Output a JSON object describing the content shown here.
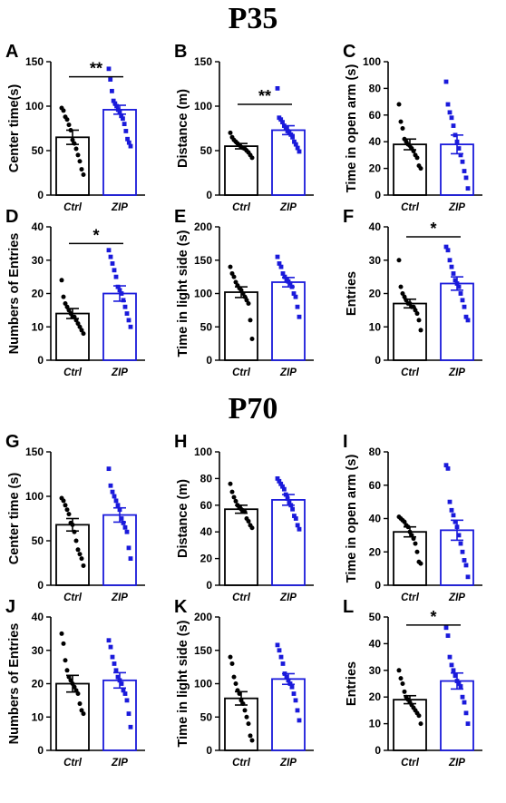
{
  "sections": {
    "p35": "P35",
    "p70": "P70"
  },
  "colors": {
    "ctrl": "#000000",
    "zip": "#1a1adb",
    "axis": "#000000"
  },
  "chart_data": [
    {
      "id": "A",
      "type": "bar",
      "ylabel": "Center time(s)",
      "ylim": [
        0,
        150
      ],
      "yticks": [
        0,
        50,
        100,
        150
      ],
      "categories": [
        "Ctrl",
        "ZIP"
      ],
      "values": [
        65,
        96
      ],
      "sem": [
        8,
        5
      ],
      "points": [
        [
          98,
          95,
          88,
          85,
          79,
          73,
          62,
          58,
          52,
          45,
          38,
          29,
          23
        ],
        [
          142,
          130,
          117,
          106,
          103,
          100,
          96,
          93,
          89,
          86,
          80,
          72,
          63,
          59,
          55
        ]
      ],
      "significance": {
        "label": "**",
        "pair": [
          0,
          1
        ],
        "y": 133
      }
    },
    {
      "id": "B",
      "type": "bar",
      "ylabel": "Distance (m)",
      "ylim": [
        0,
        150
      ],
      "yticks": [
        0,
        50,
        100,
        150
      ],
      "categories": [
        "Ctrl",
        "ZIP"
      ],
      "values": [
        55,
        73
      ],
      "sem": [
        3,
        5
      ],
      "points": [
        [
          70,
          65,
          62,
          60,
          58,
          56,
          54,
          53,
          52,
          50,
          48,
          45,
          42
        ],
        [
          120,
          87,
          85,
          82,
          78,
          75,
          72,
          70,
          68,
          65,
          60,
          57,
          53,
          49
        ]
      ],
      "significance": {
        "label": "**",
        "pair": [
          0,
          1
        ],
        "y": 102
      }
    },
    {
      "id": "C",
      "type": "bar",
      "ylabel": "Time in open arm (s)",
      "ylim": [
        0,
        100
      ],
      "yticks": [
        0,
        20,
        40,
        60,
        80,
        100
      ],
      "categories": [
        "Ctrl",
        "ZIP"
      ],
      "values": [
        38,
        38
      ],
      "sem": [
        4,
        7
      ],
      "points": [
        [
          68,
          55,
          50,
          42,
          40,
          38,
          37,
          35,
          33,
          30,
          28,
          22,
          20
        ],
        [
          85,
          68,
          62,
          58,
          52,
          45,
          40,
          35,
          30,
          25,
          18,
          13,
          5
        ]
      ],
      "significance": null
    },
    {
      "id": "D",
      "type": "bar",
      "ylabel": "Numbers of Entries",
      "ylim": [
        0,
        40
      ],
      "yticks": [
        0,
        10,
        20,
        30,
        40
      ],
      "categories": [
        "Ctrl",
        "ZIP"
      ],
      "values": [
        14,
        20
      ],
      "sem": [
        1.5,
        2.3
      ],
      "points": [
        [
          24,
          19,
          17,
          16,
          15,
          14,
          13,
          13,
          12,
          11,
          10,
          9,
          8
        ],
        [
          33,
          31,
          29,
          27,
          25,
          22,
          21,
          20,
          18,
          16,
          14,
          12,
          10
        ]
      ],
      "significance": {
        "label": "*",
        "pair": [
          0,
          1
        ],
        "y": 35
      }
    },
    {
      "id": "E",
      "type": "bar",
      "ylabel": "Time in light side (s)",
      "ylim": [
        0,
        200
      ],
      "yticks": [
        0,
        50,
        100,
        150,
        200
      ],
      "categories": [
        "Ctrl",
        "ZIP"
      ],
      "values": [
        102,
        117
      ],
      "sem": [
        8,
        7
      ],
      "points": [
        [
          140,
          130,
          125,
          117,
          112,
          108,
          105,
          100,
          95,
          90,
          85,
          60,
          32
        ],
        [
          155,
          145,
          140,
          130,
          125,
          120,
          118,
          115,
          110,
          100,
          95,
          80,
          65
        ]
      ],
      "significance": null
    },
    {
      "id": "F",
      "type": "bar",
      "ylabel": "Entries",
      "ylim": [
        0,
        40
      ],
      "yticks": [
        0,
        10,
        20,
        30,
        40
      ],
      "categories": [
        "Ctrl",
        "ZIP"
      ],
      "values": [
        17,
        23
      ],
      "sem": [
        1.3,
        2
      ],
      "points": [
        [
          30,
          22,
          20,
          19,
          18,
          17,
          17,
          16,
          16,
          15,
          14,
          12,
          9
        ],
        [
          34,
          33,
          30,
          28,
          26,
          24,
          23,
          22,
          20,
          18,
          16,
          13,
          12
        ]
      ],
      "significance": {
        "label": "*",
        "pair": [
          0,
          1
        ],
        "y": 37
      }
    },
    {
      "id": "G",
      "type": "bar",
      "ylabel": "Center time (s)",
      "ylim": [
        0,
        150
      ],
      "yticks": [
        0,
        50,
        100,
        150
      ],
      "categories": [
        "Ctrl",
        "ZIP"
      ],
      "values": [
        68,
        79
      ],
      "sem": [
        7,
        8
      ],
      "points": [
        [
          98,
          95,
          90,
          85,
          80,
          70,
          68,
          60,
          50,
          40,
          35,
          30,
          22
        ],
        [
          131,
          112,
          105,
          100,
          95,
          90,
          85,
          75,
          70,
          65,
          60,
          42,
          30
        ]
      ],
      "significance": null
    },
    {
      "id": "H",
      "type": "bar",
      "ylabel": "Distance (m)",
      "ylim": [
        0,
        100
      ],
      "yticks": [
        0,
        20,
        40,
        60,
        80,
        100
      ],
      "categories": [
        "Ctrl",
        "ZIP"
      ],
      "values": [
        57,
        64
      ],
      "sem": [
        3,
        4
      ],
      "points": [
        [
          76,
          70,
          66,
          63,
          60,
          58,
          57,
          56,
          55,
          50,
          48,
          45,
          43
        ],
        [
          80,
          78,
          76,
          74,
          72,
          68,
          65,
          62,
          60,
          57,
          52,
          50,
          45,
          42
        ]
      ],
      "significance": null
    },
    {
      "id": "I",
      "type": "bar",
      "ylabel": "Time in open arm (s)",
      "ylim": [
        0,
        80
      ],
      "yticks": [
        0,
        20,
        40,
        60,
        80
      ],
      "categories": [
        "Ctrl",
        "ZIP"
      ],
      "values": [
        32,
        33
      ],
      "sem": [
        3,
        6
      ],
      "points": [
        [
          41,
          40,
          39,
          38,
          36,
          35,
          32,
          30,
          28,
          25,
          20,
          14,
          13
        ],
        [
          72,
          70,
          50,
          45,
          42,
          38,
          35,
          30,
          25,
          20,
          15,
          12,
          5
        ]
      ],
      "significance": null
    },
    {
      "id": "J",
      "type": "bar",
      "ylabel": "Numbers of Entries",
      "ylim": [
        0,
        40
      ],
      "yticks": [
        0,
        10,
        20,
        30,
        40
      ],
      "categories": [
        "Ctrl",
        "ZIP"
      ],
      "values": [
        20,
        21
      ],
      "sem": [
        2.5,
        2.3
      ],
      "points": [
        [
          35,
          32,
          27,
          24,
          22,
          21,
          20,
          19,
          18,
          17,
          14,
          12,
          11
        ],
        [
          33,
          31,
          28,
          26,
          24,
          22,
          21,
          20,
          18,
          17,
          15,
          11,
          7
        ]
      ],
      "significance": null
    },
    {
      "id": "K",
      "type": "bar",
      "ylabel": "Time in light side (s)",
      "ylim": [
        0,
        200
      ],
      "yticks": [
        0,
        50,
        100,
        150,
        200
      ],
      "categories": [
        "Ctrl",
        "ZIP"
      ],
      "values": [
        78,
        107
      ],
      "sem": [
        10,
        8
      ],
      "points": [
        [
          140,
          130,
          110,
          100,
          90,
          85,
          75,
          70,
          60,
          50,
          40,
          22,
          15
        ],
        [
          158,
          150,
          140,
          130,
          115,
          110,
          105,
          100,
          95,
          85,
          75,
          60,
          45
        ]
      ],
      "significance": null
    },
    {
      "id": "L",
      "type": "bar",
      "ylabel": "Entries",
      "ylim": [
        0,
        50
      ],
      "yticks": [
        0,
        10,
        20,
        30,
        40,
        50
      ],
      "categories": [
        "Ctrl",
        "ZIP"
      ],
      "values": [
        19,
        26
      ],
      "sem": [
        1.5,
        3
      ],
      "points": [
        [
          30,
          27,
          25,
          22,
          20,
          19,
          18,
          17,
          16,
          15,
          14,
          13,
          10
        ],
        [
          46,
          43,
          35,
          32,
          30,
          28,
          26,
          25,
          24,
          20,
          18,
          14,
          10
        ]
      ],
      "significance": {
        "label": "*",
        "pair": [
          0,
          1
        ],
        "y": 47
      }
    }
  ]
}
